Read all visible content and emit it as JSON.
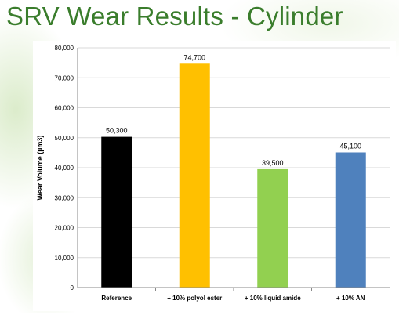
{
  "slide": {
    "title": "SRV Wear Results - Cylinder"
  },
  "colors": {
    "title": "#3a7d2c",
    "grid": "#d9d9d9",
    "axis": "#888888"
  },
  "chart_data": {
    "type": "bar",
    "title": "",
    "xlabel": "",
    "ylabel": "Wear Volume (µm3)",
    "ylim": [
      0,
      80000
    ],
    "yticks": [
      0,
      10000,
      20000,
      30000,
      40000,
      50000,
      60000,
      70000,
      80000
    ],
    "ytick_labels": [
      "0",
      "10,000",
      "20,000",
      "30,000",
      "40,000",
      "50,000",
      "60,000",
      "70,000",
      "80,000"
    ],
    "grid": true,
    "categories": [
      "Reference",
      "+ 10% polyol ester",
      "+ 10% liquid amide",
      "+ 10% AN"
    ],
    "values": [
      50300,
      74700,
      39500,
      45100
    ],
    "data_labels": [
      "50,300",
      "74,700",
      "39,500",
      "45,100"
    ],
    "bar_colors": [
      "#000000",
      "#ffc000",
      "#92d050",
      "#4f81bd"
    ]
  }
}
